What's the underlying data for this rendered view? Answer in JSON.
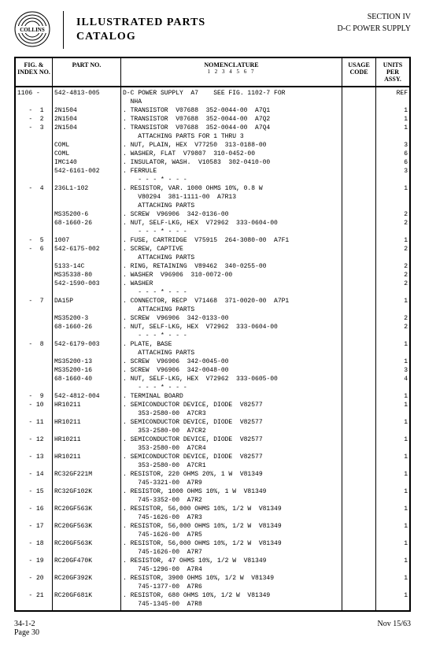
{
  "header": {
    "brand": "COLLINS",
    "title1": "ILLUSTRATED  PARTS",
    "title2": "CATALOG",
    "section": "SECTION IV",
    "subject": "D-C POWER SUPPLY"
  },
  "columns": {
    "fig": "FIG. &\nINDEX\nNO.",
    "part": "PART NO.",
    "nom": "NOMENCLATURE",
    "nom_sub": "1  2  3  4  5  6  7",
    "usage": "USAGE\nCODE",
    "units": "UNITS\nPER\nASSY."
  },
  "rows": [
    {
      "fig": "",
      "part": "",
      "nom": "",
      "usage": "",
      "units": ""
    },
    {
      "fig": "1106 -",
      "part": "542-4813-005",
      "nom": "D-C POWER SUPPLY  A7    SEE FIG. 1102-7 FOR",
      "usage": "",
      "units": "REF"
    },
    {
      "fig": "",
      "part": "",
      "nom": "  NHA",
      "usage": "",
      "units": ""
    },
    {
      "fig": "   -  1",
      "part": "2N1504",
      "nom": ". TRANSISTOR  V07688  352-0044-00  A7Q1",
      "usage": "",
      "units": "1"
    },
    {
      "fig": "   -  2",
      "part": "2N1504",
      "nom": ". TRANSISTOR  V07688  352-0044-00  A7Q2",
      "usage": "",
      "units": "1"
    },
    {
      "fig": "   -  3",
      "part": "2N1504",
      "nom": ". TRANSISTOR  V07688  352-0044-00  A7Q4",
      "usage": "",
      "units": "1"
    },
    {
      "fig": "",
      "part": "",
      "nom": "    ATTACHING PARTS FOR 1 THRU 3",
      "usage": "",
      "units": ""
    },
    {
      "fig": "",
      "part": "COML",
      "nom": ". NUT, PLAIN, HEX  V77250  313-0188-00",
      "usage": "",
      "units": "3"
    },
    {
      "fig": "",
      "part": "COML",
      "nom": ". WASHER, FLAT  V79807  310-0452-00",
      "usage": "",
      "units": "6"
    },
    {
      "fig": "",
      "part": "IMC140",
      "nom": ". INSULATOR, WASH.  V10583  302-0410-00",
      "usage": "",
      "units": "6"
    },
    {
      "fig": "",
      "part": "542-6161-002",
      "nom": ". FERRULE",
      "usage": "",
      "units": "3"
    },
    {
      "fig": "",
      "part": "",
      "nom": "    - - - * - - -",
      "usage": "",
      "units": ""
    },
    {
      "fig": "   -  4",
      "part": "236L1-102",
      "nom": ". RESISTOR, VAR. 1000 OHMS 10%, 0.8 W",
      "usage": "",
      "units": "1"
    },
    {
      "fig": "",
      "part": "",
      "nom": "    V80294  381-1111-00  A7R13",
      "usage": "",
      "units": ""
    },
    {
      "fig": "",
      "part": "",
      "nom": "    ATTACHING PARTS",
      "usage": "",
      "units": ""
    },
    {
      "fig": "",
      "part": "MS35200-6",
      "nom": ". SCREW  V96906  342-0136-00",
      "usage": "",
      "units": "2"
    },
    {
      "fig": "",
      "part": "68-1660-26",
      "nom": ". NUT, SELF-LKG, HEX  V72962  333-0604-00",
      "usage": "",
      "units": "2"
    },
    {
      "fig": "",
      "part": "",
      "nom": "    - - - * - - -",
      "usage": "",
      "units": ""
    },
    {
      "fig": "   -  5",
      "part": "1007",
      "nom": ". FUSE, CARTRIDGE  V75915  264-3080-00  A7F1",
      "usage": "",
      "units": "1"
    },
    {
      "fig": "   -  6",
      "part": "542-6175-002",
      "nom": ". SCREW, CAPTIVE",
      "usage": "",
      "units": "2"
    },
    {
      "fig": "",
      "part": "",
      "nom": "    ATTACHING PARTS",
      "usage": "",
      "units": ""
    },
    {
      "fig": "",
      "part": "5133-14C",
      "nom": ". RING, RETAINING  V89462  340-0255-00",
      "usage": "",
      "units": "2"
    },
    {
      "fig": "",
      "part": "MS35338-80",
      "nom": ". WASHER  V96906  310-0072-00",
      "usage": "",
      "units": "2"
    },
    {
      "fig": "",
      "part": "542-1590-003",
      "nom": ". WASHER",
      "usage": "",
      "units": "2"
    },
    {
      "fig": "",
      "part": "",
      "nom": "    - - - * - - -",
      "usage": "",
      "units": ""
    },
    {
      "fig": "   -  7",
      "part": "DA15P",
      "nom": ". CONNECTOR, RECP  V71468  371-0020-00  A7P1",
      "usage": "",
      "units": "1"
    },
    {
      "fig": "",
      "part": "",
      "nom": "    ATTACHING PARTS",
      "usage": "",
      "units": ""
    },
    {
      "fig": "",
      "part": "MS35200-3",
      "nom": ". SCREW  V96906  342-0133-00",
      "usage": "",
      "units": "2"
    },
    {
      "fig": "",
      "part": "68-1660-26",
      "nom": ". NUT, SELF-LKG, HEX  V72962  333-0604-00",
      "usage": "",
      "units": "2"
    },
    {
      "fig": "",
      "part": "",
      "nom": "    - - - * - - -",
      "usage": "",
      "units": ""
    },
    {
      "fig": "   -  8",
      "part": "542-6179-003",
      "nom": ". PLATE, BASE",
      "usage": "",
      "units": "1"
    },
    {
      "fig": "",
      "part": "",
      "nom": "    ATTACHING PARTS",
      "usage": "",
      "units": ""
    },
    {
      "fig": "",
      "part": "MS35200-13",
      "nom": ". SCREW  V96906  342-0045-00",
      "usage": "",
      "units": "1"
    },
    {
      "fig": "",
      "part": "MS35200-16",
      "nom": ". SCREW  V96906  342-0048-00",
      "usage": "",
      "units": "3"
    },
    {
      "fig": "",
      "part": "68-1660-40",
      "nom": ". NUT, SELF-LKG, HEX  V72962  333-0605-00",
      "usage": "",
      "units": "4"
    },
    {
      "fig": "",
      "part": "",
      "nom": "    - - - * - - -",
      "usage": "",
      "units": ""
    },
    {
      "fig": "   -  9",
      "part": "542-4812-004",
      "nom": ". TERMINAL BOARD",
      "usage": "",
      "units": "1"
    },
    {
      "fig": "   - 10",
      "part": "HR10211",
      "nom": ". SEMICONDUCTOR DEVICE, DIODE  V82577",
      "usage": "",
      "units": "1"
    },
    {
      "fig": "",
      "part": "",
      "nom": "    353-2580-00  A7CR3",
      "usage": "",
      "units": ""
    },
    {
      "fig": "   - 11",
      "part": "HR10211",
      "nom": ". SEMICONDUCTOR DEVICE, DIODE  V82577",
      "usage": "",
      "units": "1"
    },
    {
      "fig": "",
      "part": "",
      "nom": "    353-2580-00  A7CR2",
      "usage": "",
      "units": ""
    },
    {
      "fig": "   - 12",
      "part": "HR10211",
      "nom": ". SEMICONDUCTOR DEVICE, DIODE  V82577",
      "usage": "",
      "units": "1"
    },
    {
      "fig": "",
      "part": "",
      "nom": "    353-2580-00  A7CR4",
      "usage": "",
      "units": ""
    },
    {
      "fig": "   - 13",
      "part": "HR10211",
      "nom": ". SEMICONDUCTOR DEVICE, DIODE  V82577",
      "usage": "",
      "units": "1"
    },
    {
      "fig": "",
      "part": "",
      "nom": "    353-2580-00  A7CR1",
      "usage": "",
      "units": ""
    },
    {
      "fig": "   - 14",
      "part": "RC32GF221M",
      "nom": ". RESISTOR, 220 OHMS 20%, 1 W  V81349",
      "usage": "",
      "units": "1"
    },
    {
      "fig": "",
      "part": "",
      "nom": "    745-3321-00  A7R9",
      "usage": "",
      "units": ""
    },
    {
      "fig": "   - 15",
      "part": "RC32GF102K",
      "nom": ". RESISTOR, 1000 OHMS 10%, 1 W  V81349",
      "usage": "",
      "units": "1"
    },
    {
      "fig": "",
      "part": "",
      "nom": "    745-3352-00  A7R2",
      "usage": "",
      "units": ""
    },
    {
      "fig": "   - 16",
      "part": "RC20GF563K",
      "nom": ". RESISTOR, 56,000 OHMS 10%, 1/2 W  V81349",
      "usage": "",
      "units": "1"
    },
    {
      "fig": "",
      "part": "",
      "nom": "    745-1626-00  A7R3",
      "usage": "",
      "units": ""
    },
    {
      "fig": "   - 17",
      "part": "RC20GF563K",
      "nom": ". RESISTOR, 56,000 OHMS 10%, 1/2 W  V81349",
      "usage": "",
      "units": "1"
    },
    {
      "fig": "",
      "part": "",
      "nom": "    745-1626-00  A7R5",
      "usage": "",
      "units": ""
    },
    {
      "fig": "   - 18",
      "part": "RC20GF563K",
      "nom": ". RESISTOR, 56,000 OHMS 10%, 1/2 W  V81349",
      "usage": "",
      "units": "1"
    },
    {
      "fig": "",
      "part": "",
      "nom": "    745-1626-00  A7R7",
      "usage": "",
      "units": ""
    },
    {
      "fig": "   - 19",
      "part": "RC20GF470K",
      "nom": ". RESISTOR, 47 OHMS 10%, 1/2 W  V81349",
      "usage": "",
      "units": "1"
    },
    {
      "fig": "",
      "part": "",
      "nom": "    745-1296-00  A7R4",
      "usage": "",
      "units": ""
    },
    {
      "fig": "   - 20",
      "part": "RC20GF392K",
      "nom": ". RESISTOR, 3900 OHMS 10%, 1/2 W  V81349",
      "usage": "",
      "units": "1"
    },
    {
      "fig": "",
      "part": "",
      "nom": "    745-1377-00  A7R6",
      "usage": "",
      "units": ""
    },
    {
      "fig": "   - 21",
      "part": "RC20GF681K",
      "nom": ". RESISTOR, 680 OHMS 10%, 1/2 W  V81349",
      "usage": "",
      "units": "1"
    },
    {
      "fig": "",
      "part": "",
      "nom": "    745-1345-00  A7R8",
      "usage": "",
      "units": ""
    },
    {
      "fig": "",
      "part": "",
      "nom": "",
      "usage": "",
      "units": ""
    }
  ],
  "footer": {
    "left1": "34-1-2",
    "left2": "Page 30",
    "right": "Nov 15/63"
  }
}
